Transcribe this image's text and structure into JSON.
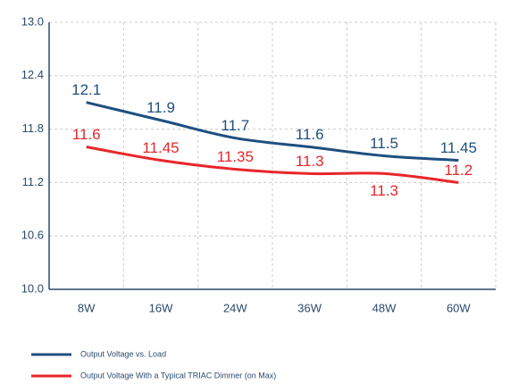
{
  "chart_data": {
    "type": "line",
    "categories": [
      "8W",
      "16W",
      "24W",
      "36W",
      "48W",
      "60W"
    ],
    "series": [
      {
        "name": "Output Voltage vs. Load",
        "color": "#1f4f7f",
        "values": [
          12.1,
          11.9,
          11.7,
          11.6,
          11.5,
          11.45
        ]
      },
      {
        "name": "Output Voltage With a Typical TRIAC Dimmer (on Max)",
        "color": "#e8262a",
        "values": [
          11.6,
          11.45,
          11.35,
          11.3,
          11.3,
          11.2
        ]
      }
    ],
    "ylim": [
      10.0,
      13.0
    ],
    "yticks": [
      {
        "value": 10.0,
        "label": "10.0"
      },
      10.6,
      11.2,
      11.8,
      12.4,
      {
        "value": 13.0,
        "label": "13.0"
      }
    ],
    "grid": true
  }
}
